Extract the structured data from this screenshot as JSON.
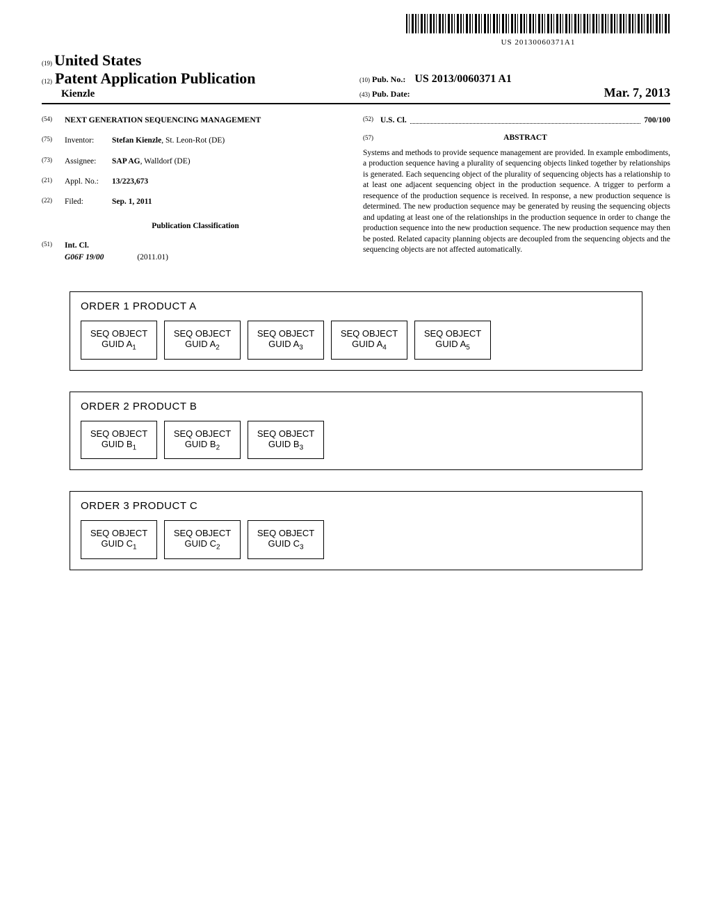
{
  "barcode_number": "US 20130060371A1",
  "header": {
    "country_code": "(19)",
    "country": "United States",
    "pub_type_code": "(12)",
    "pub_type": "Patent Application Publication",
    "inventor_name": "Kienzle",
    "pub_no_code": "(10)",
    "pub_no_label": "Pub. No.:",
    "pub_no": "US 2013/0060371 A1",
    "pub_date_code": "(43)",
    "pub_date_label": "Pub. Date:",
    "pub_date": "Mar. 7, 2013"
  },
  "fields": {
    "title_code": "(54)",
    "title": "NEXT GENERATION SEQUENCING MANAGEMENT",
    "inventor_code": "(75)",
    "inventor_label": "Inventor:",
    "inventor": "Stefan Kienzle",
    "inventor_location": ", St. Leon-Rot (DE)",
    "assignee_code": "(73)",
    "assignee_label": "Assignee:",
    "assignee": "SAP AG",
    "assignee_location": ", Walldorf (DE)",
    "appl_code": "(21)",
    "appl_label": "Appl. No.:",
    "appl_no": "13/223,673",
    "filed_code": "(22)",
    "filed_label": "Filed:",
    "filed_date": "Sep. 1, 2011",
    "pub_class_header": "Publication Classification",
    "intcl_code": "(51)",
    "intcl_label": "Int. Cl.",
    "intcl_value": "G06F 19/00",
    "intcl_year": "(2011.01)",
    "uscl_code": "(52)",
    "uscl_label": "U.S. Cl.",
    "uscl_value": "700/100",
    "abstract_code": "(57)",
    "abstract_header": "ABSTRACT",
    "abstract_text": "Systems and methods to provide sequence management are provided. In example embodiments, a production sequence having a plurality of sequencing objects linked together by relationships is generated. Each sequencing object of the plurality of sequencing objects has a relationship to at least one adjacent sequencing object in the production sequence. A trigger to perform a resequence of the production sequence is received. In response, a new production sequence is determined. The new production sequence may be generated by reusing the sequencing objects and updating at least one of the relationships in the production sequence in order to change the production sequence into the new production sequence. The new production sequence may then be posted. Related capacity planning objects are decoupled from the sequencing objects and the sequencing objects are not affected automatically."
  },
  "diagram": {
    "orders": [
      {
        "title": "ORDER 1 PRODUCT A",
        "objects": [
          {
            "line1": "SEQ OBJECT",
            "line2": "GUID A",
            "sub": "1"
          },
          {
            "line1": "SEQ OBJECT",
            "line2": "GUID A",
            "sub": "2"
          },
          {
            "line1": "SEQ OBJECT",
            "line2": "GUID A",
            "sub": "3"
          },
          {
            "line1": "SEQ OBJECT",
            "line2": "GUID A",
            "sub": "4"
          },
          {
            "line1": "SEQ OBJECT",
            "line2": "GUID A",
            "sub": "5"
          }
        ]
      },
      {
        "title": "ORDER 2 PRODUCT B",
        "objects": [
          {
            "line1": "SEQ OBJECT",
            "line2": "GUID B",
            "sub": "1"
          },
          {
            "line1": "SEQ OBJECT",
            "line2": "GUID B",
            "sub": "2"
          },
          {
            "line1": "SEQ OBJECT",
            "line2": "GUID B",
            "sub": "3"
          }
        ]
      },
      {
        "title": "ORDER 3 PRODUCT C",
        "objects": [
          {
            "line1": "SEQ OBJECT",
            "line2": "GUID C",
            "sub": "1"
          },
          {
            "line1": "SEQ OBJECT",
            "line2": "GUID C",
            "sub": "2"
          },
          {
            "line1": "SEQ OBJECT",
            "line2": "GUID C",
            "sub": "3"
          }
        ]
      }
    ]
  }
}
